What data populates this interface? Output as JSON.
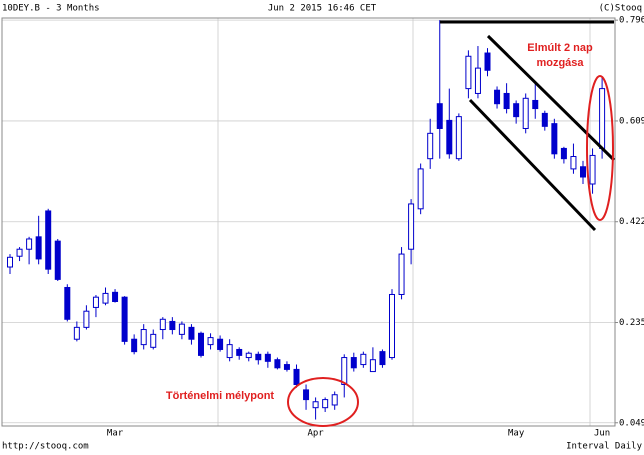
{
  "chart_data": {
    "type": "candlestick",
    "title": "10DEY.B - 3 Months",
    "subtitle": "Jun 2 2015 16:46 CET",
    "copyright": "(C)Stooq",
    "source": "http://stooq.com",
    "interval": "Interval Daily",
    "annotations": [
      "Elmúlt 2 nap",
      "mozgása",
      "Történelmi mélypont"
    ],
    "categories": [
      null,
      null,
      null,
      null,
      null,
      null,
      null,
      null,
      null,
      null,
      null,
      "Mar",
      null,
      null,
      null,
      null,
      null,
      null,
      null,
      null,
      null,
      null,
      null,
      null,
      null,
      null,
      null,
      null,
      null,
      null,
      null,
      null,
      "Apr",
      null,
      null,
      null,
      null,
      null,
      null,
      null,
      null,
      null,
      null,
      null,
      null,
      null,
      null,
      null,
      null,
      null,
      null,
      null,
      null,
      "May",
      null,
      null,
      null,
      null,
      null,
      null,
      null,
      null,
      "Jun"
    ],
    "open": [
      0.338,
      0.358,
      0.371,
      0.394,
      0.442,
      0.386,
      0.3,
      0.204,
      0.226,
      0.263,
      0.271,
      0.291,
      0.282,
      0.204,
      0.194,
      0.189,
      0.222,
      0.237,
      0.213,
      0.226,
      0.215,
      0.194,
      0.204,
      0.17,
      0.185,
      0.17,
      0.176,
      0.176,
      0.166,
      0.157,
      0.148,
      0.11,
      0.077,
      0.077,
      0.082,
      0.12,
      0.17,
      0.157,
      0.144,
      0.181,
      0.17,
      0.287,
      0.371,
      0.446,
      0.539,
      0.641,
      0.61,
      0.539,
      0.669,
      0.66,
      0.735,
      0.666,
      0.66,
      0.641,
      0.595,
      0.647,
      0.623,
      0.604,
      0.558,
      0.52,
      0.524,
      0.492,
      0.558
    ],
    "high": [
      0.362,
      0.375,
      0.394,
      0.433,
      0.446,
      0.39,
      0.306,
      0.237,
      0.267,
      0.286,
      0.3,
      0.297,
      0.284,
      0.213,
      0.232,
      0.222,
      0.245,
      0.245,
      0.237,
      0.232,
      0.218,
      0.215,
      0.211,
      0.204,
      0.189,
      0.181,
      0.181,
      0.181,
      0.17,
      0.163,
      0.157,
      0.12,
      0.096,
      0.096,
      0.107,
      0.176,
      0.179,
      0.181,
      0.189,
      0.185,
      0.297,
      0.375,
      0.464,
      0.53,
      0.613,
      0.796,
      0.669,
      0.623,
      0.74,
      0.748,
      0.744,
      0.673,
      0.679,
      0.647,
      0.66,
      0.679,
      0.628,
      0.613,
      0.561,
      0.567,
      0.535,
      0.558,
      0.692
    ],
    "low": [
      0.325,
      0.349,
      0.343,
      0.343,
      0.325,
      0.312,
      0.237,
      0.2,
      0.222,
      0.245,
      0.267,
      0.272,
      0.194,
      0.176,
      0.185,
      0.185,
      0.204,
      0.213,
      0.204,
      0.194,
      0.17,
      0.185,
      0.181,
      0.163,
      0.166,
      0.163,
      0.157,
      0.151,
      0.148,
      0.144,
      0.114,
      0.073,
      0.055,
      0.069,
      0.073,
      0.096,
      0.144,
      0.151,
      0.144,
      0.151,
      0.166,
      0.278,
      0.343,
      0.436,
      0.52,
      0.539,
      0.539,
      0.535,
      0.651,
      0.651,
      0.692,
      0.632,
      0.623,
      0.604,
      0.586,
      0.613,
      0.591,
      0.539,
      0.53,
      0.511,
      0.492,
      0.474,
      0.539
    ],
    "close": [
      0.356,
      0.371,
      0.39,
      0.353,
      0.334,
      0.315,
      0.241,
      0.226,
      0.256,
      0.282,
      0.289,
      0.274,
      0.2,
      0.181,
      0.222,
      0.213,
      0.241,
      0.222,
      0.232,
      0.204,
      0.174,
      0.207,
      0.185,
      0.194,
      0.174,
      0.178,
      0.166,
      0.163,
      0.151,
      0.148,
      0.12,
      0.092,
      0.088,
      0.092,
      0.101,
      0.17,
      0.151,
      0.176,
      0.166,
      0.157,
      0.287,
      0.362,
      0.455,
      0.52,
      0.586,
      0.595,
      0.548,
      0.617,
      0.729,
      0.707,
      0.703,
      0.641,
      0.632,
      0.617,
      0.651,
      0.632,
      0.599,
      0.548,
      0.539,
      0.543,
      0.505,
      0.545,
      0.669
    ],
    "up_color": "#0000cc",
    "down_color": "#0000cc",
    "ylim": [
      0.043,
      0.8
    ],
    "yticks": [
      0.049,
      0.235,
      0.422,
      0.609,
      0.796
    ],
    "grid": true
  }
}
